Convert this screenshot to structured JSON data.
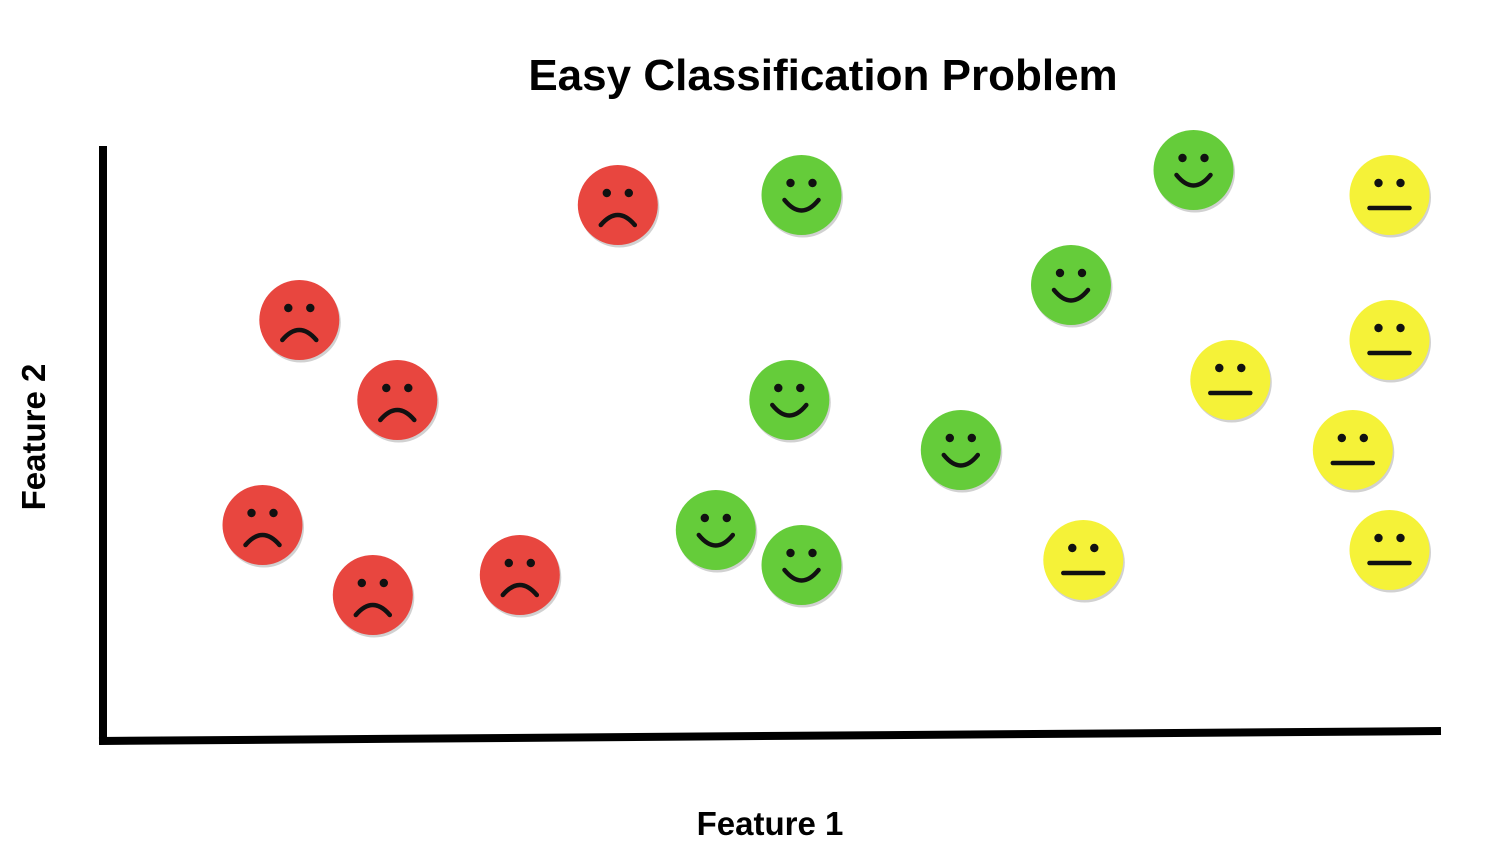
{
  "chart_data": {
    "type": "scatter",
    "title": "Easy Classification Problem",
    "xlabel": "Feature 1",
    "ylabel": "Feature 2",
    "xlim": [
      0,
      100
    ],
    "ylim": [
      0,
      100
    ],
    "grid": false,
    "axis_ticks": false,
    "series": [
      {
        "marker": "sad-face-icon",
        "color": "#E8463F",
        "points": [
          {
            "x": 35,
            "y": 91
          },
          {
            "x": 9,
            "y": 68
          },
          {
            "x": 17,
            "y": 52
          },
          {
            "x": 6,
            "y": 27
          },
          {
            "x": 15,
            "y": 13
          },
          {
            "x": 27,
            "y": 17
          }
        ]
      },
      {
        "marker": "happy-face-icon",
        "color": "#65CC3A",
        "points": [
          {
            "x": 50,
            "y": 93
          },
          {
            "x": 82,
            "y": 98
          },
          {
            "x": 72,
            "y": 75
          },
          {
            "x": 49,
            "y": 52
          },
          {
            "x": 63,
            "y": 42
          },
          {
            "x": 43,
            "y": 26
          },
          {
            "x": 50,
            "y": 19
          }
        ]
      },
      {
        "marker": "neutral-face-icon",
        "color": "#F5F238",
        "points": [
          {
            "x": 98,
            "y": 93
          },
          {
            "x": 98,
            "y": 64
          },
          {
            "x": 85,
            "y": 56
          },
          {
            "x": 95,
            "y": 42
          },
          {
            "x": 73,
            "y": 20
          },
          {
            "x": 98,
            "y": 22
          }
        ]
      }
    ]
  }
}
